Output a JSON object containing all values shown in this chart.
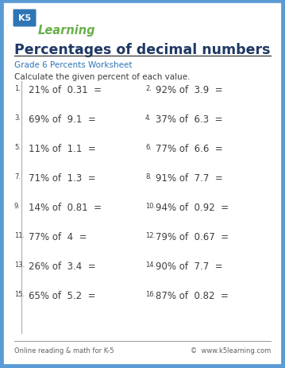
{
  "title": "Percentages of decimal numbers",
  "subtitle": "Grade 6 Percents Worksheet",
  "instruction": "Calculate the given percent of each value.",
  "problems_left": [
    "21% of  0.31  =",
    "69% of  9.1  =",
    "11% of  1.1  =",
    "71% of  1.3  =",
    "14% of  0.81  =",
    "77% of  4  =",
    "26% of  3.4  =",
    "65% of  5.2  ="
  ],
  "problems_right": [
    "92% of  3.9  =",
    "37% of  6.3  =",
    "77% of  6.6  =",
    "91% of  7.7  =",
    "94% of  0.92  =",
    "79% of  0.67  =",
    "90% of  7.7  =",
    "87% of  0.82  ="
  ],
  "nums_left": [
    "1.",
    "3.",
    "5.",
    "7.",
    "9.",
    "11.",
    "13.",
    "15."
  ],
  "nums_right": [
    "2.",
    "4.",
    "6.",
    "8.",
    "10.",
    "12.",
    "14.",
    "16."
  ],
  "footer_left": "Online reading & math for K-5",
  "footer_right": "©  www.k5learning.com",
  "border_color": "#5b9bd5",
  "title_color": "#1f3864",
  "subtitle_color": "#2e75b6",
  "text_color": "#3d3d3d",
  "footer_color": "#606060",
  "bg_color": "#ffffff",
  "k5_box_color": "#2e75b6",
  "k5_text_color": "#ffffff",
  "learning_color": "#6ab04c",
  "divider_color": "#aaaaaa",
  "line_color": "#333333",
  "fig_w": 3.59,
  "fig_h": 4.64,
  "dpi": 100
}
